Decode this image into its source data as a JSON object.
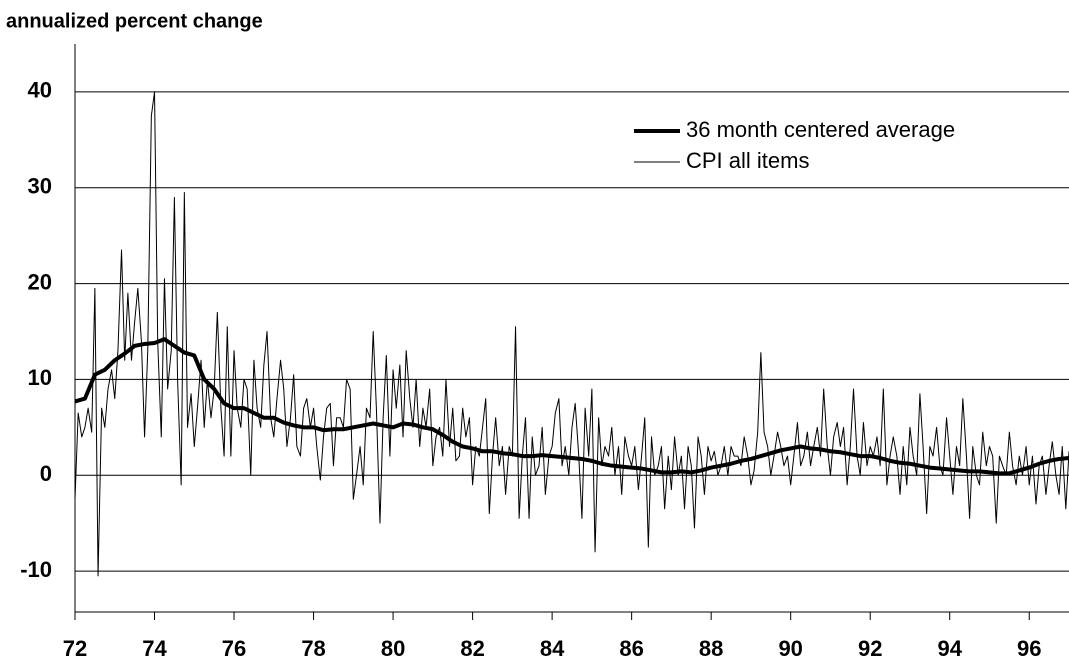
{
  "chart_data": {
    "type": "line",
    "title": "annualized percent change",
    "xlim": [
      72,
      97
    ],
    "xticks": [
      72,
      74,
      76,
      78,
      80,
      82,
      84,
      86,
      88,
      90,
      92,
      94,
      96
    ],
    "ylim": [
      -15,
      45
    ],
    "yticks": [
      40,
      30,
      20,
      10,
      0,
      -10
    ],
    "grid": true,
    "legend": "upper right",
    "series": [
      {
        "name": "36 month centered average",
        "color": "#000000",
        "x": [
          72,
          72.25,
          72.5,
          72.75,
          73,
          73.25,
          73.5,
          73.75,
          74,
          74.25,
          74.5,
          74.75,
          75,
          75.25,
          75.5,
          75.75,
          76,
          76.25,
          76.5,
          76.75,
          77,
          77.25,
          77.5,
          77.75,
          78,
          78.25,
          78.5,
          78.75,
          79,
          79.25,
          79.5,
          79.75,
          80,
          80.25,
          80.5,
          80.75,
          81,
          81.25,
          81.5,
          81.75,
          82,
          82.25,
          82.5,
          82.75,
          83,
          83.25,
          83.5,
          83.75,
          84,
          84.25,
          84.5,
          84.75,
          85,
          85.25,
          85.5,
          85.75,
          86,
          86.25,
          86.5,
          86.75,
          87,
          87.25,
          87.5,
          87.75,
          88,
          88.25,
          88.5,
          88.75,
          89,
          89.25,
          89.5,
          89.75,
          90,
          90.25,
          90.5,
          90.75,
          91,
          91.25,
          91.5,
          91.75,
          92,
          92.25,
          92.5,
          92.75,
          93,
          93.25,
          93.5,
          93.75,
          94,
          94.25,
          94.5,
          94.75,
          95,
          95.25,
          95.5,
          95.75,
          96,
          96.25,
          96.5,
          96.75,
          97
        ],
        "values": [
          7.7,
          8,
          10.5,
          11,
          12,
          12.7,
          13.5,
          13.7,
          13.8,
          14.2,
          13.5,
          12.8,
          12.5,
          10,
          9,
          7.5,
          7,
          7,
          6.5,
          6,
          6,
          5.5,
          5.2,
          5,
          5,
          4.7,
          4.8,
          4.8,
          5,
          5.2,
          5.4,
          5.2,
          5,
          5.4,
          5.3,
          5,
          4.8,
          4.2,
          3.5,
          3,
          2.8,
          2.5,
          2.5,
          2.3,
          2.2,
          2,
          2,
          2.1,
          2,
          1.9,
          1.8,
          1.7,
          1.5,
          1.2,
          1,
          0.9,
          0.8,
          0.7,
          0.5,
          0.3,
          0.3,
          0.4,
          0.3,
          0.5,
          0.8,
          1,
          1.2,
          1.5,
          1.7,
          2,
          2.3,
          2.6,
          2.8,
          3,
          2.8,
          2.7,
          2.5,
          2.4,
          2.2,
          2,
          2,
          1.8,
          1.5,
          1.3,
          1.2,
          1,
          0.8,
          0.7,
          0.6,
          0.5,
          0.4,
          0.4,
          0.3,
          0.2,
          0.2,
          0.5,
          0.8,
          1.2,
          1.5,
          1.7,
          1.8
        ]
      },
      {
        "name": "CPI all items",
        "color": "#000000",
        "x": [
          72,
          72.08,
          72.17,
          72.25,
          72.33,
          72.42,
          72.5,
          72.58,
          72.67,
          72.75,
          72.83,
          72.92,
          73,
          73.08,
          73.17,
          73.25,
          73.33,
          73.42,
          73.5,
          73.58,
          73.67,
          73.75,
          73.83,
          73.92,
          74,
          74.08,
          74.17,
          74.25,
          74.33,
          74.42,
          74.5,
          74.58,
          74.67,
          74.75,
          74.83,
          74.92,
          75,
          75.08,
          75.17,
          75.25,
          75.33,
          75.42,
          75.5,
          75.58,
          75.67,
          75.75,
          75.83,
          75.92,
          76,
          76.08,
          76.17,
          76.25,
          76.33,
          76.42,
          76.5,
          76.58,
          76.67,
          76.75,
          76.83,
          76.92,
          77,
          77.08,
          77.17,
          77.25,
          77.33,
          77.42,
          77.5,
          77.58,
          77.67,
          77.75,
          77.83,
          77.92,
          78,
          78.08,
          78.17,
          78.25,
          78.33,
          78.42,
          78.5,
          78.58,
          78.67,
          78.75,
          78.83,
          78.92,
          79,
          79.08,
          79.17,
          79.25,
          79.33,
          79.42,
          79.5,
          79.58,
          79.67,
          79.75,
          79.83,
          79.92,
          80,
          80.08,
          80.17,
          80.25,
          80.33,
          80.42,
          80.5,
          80.58,
          80.67,
          80.75,
          80.83,
          80.92,
          81,
          81.08,
          81.17,
          81.25,
          81.33,
          81.42,
          81.5,
          81.58,
          81.67,
          81.75,
          81.83,
          81.92,
          82,
          82.08,
          82.17,
          82.25,
          82.33,
          82.42,
          82.5,
          82.58,
          82.67,
          82.75,
          82.83,
          82.92,
          83,
          83.08,
          83.17,
          83.25,
          83.33,
          83.42,
          83.5,
          83.58,
          83.67,
          83.75,
          83.83,
          83.92,
          84,
          84.08,
          84.17,
          84.25,
          84.33,
          84.42,
          84.5,
          84.58,
          84.67,
          84.75,
          84.83,
          84.92,
          85,
          85.08,
          85.17,
          85.25,
          85.33,
          85.42,
          85.5,
          85.58,
          85.67,
          85.75,
          85.83,
          85.92,
          86,
          86.08,
          86.17,
          86.25,
          86.33,
          86.42,
          86.5,
          86.58,
          86.67,
          86.75,
          86.83,
          86.92,
          87,
          87.08,
          87.17,
          87.25,
          87.33,
          87.42,
          87.5,
          87.58,
          87.67,
          87.75,
          87.83,
          87.92,
          88,
          88.08,
          88.17,
          88.25,
          88.33,
          88.42,
          88.5,
          88.58,
          88.67,
          88.75,
          88.83,
          88.92,
          89,
          89.08,
          89.17,
          89.25,
          89.33,
          89.42,
          89.5,
          89.58,
          89.67,
          89.75,
          89.83,
          89.92,
          90,
          90.08,
          90.17,
          90.25,
          90.33,
          90.42,
          90.5,
          90.58,
          90.67,
          90.75,
          90.83,
          90.92,
          91,
          91.08,
          91.17,
          91.25,
          91.33,
          91.42,
          91.5,
          91.58,
          91.67,
          91.75,
          91.83,
          91.92,
          92,
          92.08,
          92.17,
          92.25,
          92.33,
          92.42,
          92.5,
          92.58,
          92.67,
          92.75,
          92.83,
          92.92,
          93,
          93.08,
          93.17,
          93.25,
          93.33,
          93.42,
          93.5,
          93.58,
          93.67,
          93.75,
          93.83,
          93.92,
          94,
          94.08,
          94.17,
          94.25,
          94.33,
          94.42,
          94.5,
          94.58,
          94.67,
          94.75,
          94.83,
          94.92,
          95,
          95.08,
          95.17,
          95.25,
          95.33,
          95.42,
          95.5,
          95.58,
          95.67,
          95.75,
          95.83,
          95.92,
          96,
          96.08,
          96.17,
          96.25,
          96.33,
          96.42,
          96.5,
          96.58,
          96.67,
          96.75,
          96.83,
          96.92,
          97
        ],
        "values": [
          -2.5,
          6.5,
          4,
          5,
          7,
          4.5,
          19.5,
          -10.5,
          7,
          5,
          9,
          11,
          8,
          13,
          23.5,
          12,
          19,
          12,
          16,
          19.5,
          14,
          4,
          13,
          37.5,
          40,
          14,
          4,
          20.5,
          9,
          13,
          29,
          10,
          -1,
          29.5,
          5,
          8.5,
          3,
          7,
          12,
          5,
          10,
          6,
          9,
          17,
          7,
          2,
          15.5,
          2,
          13,
          7,
          5,
          10,
          9,
          0,
          12,
          7,
          5,
          11.5,
          15,
          6,
          4,
          8,
          12,
          9,
          3,
          6,
          10.5,
          3,
          2,
          7,
          8,
          5,
          7,
          3,
          -0.5,
          4,
          7,
          7.5,
          1,
          6,
          6,
          5,
          10,
          9,
          -2.5,
          0,
          3,
          -1,
          7,
          6,
          15,
          7,
          -5,
          6,
          12.5,
          2,
          11,
          7,
          11.5,
          4,
          13,
          8,
          5,
          10,
          3,
          7,
          5,
          9,
          1,
          4,
          5,
          2,
          10,
          3,
          7,
          1.5,
          2,
          7,
          4,
          6,
          -1,
          3,
          2,
          5,
          8,
          -4,
          2,
          6,
          1,
          3,
          -2,
          3,
          2,
          15.5,
          -4.5,
          2,
          6,
          -4.5,
          4,
          0,
          1,
          5,
          -2,
          2,
          3,
          6.5,
          8,
          1,
          3,
          0,
          5,
          7.5,
          2,
          -4.5,
          7,
          2,
          9,
          -8,
          6,
          1,
          3,
          2,
          5,
          0,
          3,
          -2,
          4,
          2,
          1,
          3,
          -1.5,
          2,
          6,
          -7.5,
          4,
          0,
          1,
          3,
          -3.5,
          2,
          -1.5,
          4,
          0,
          2,
          -3.5,
          3,
          1,
          -5.5,
          4,
          2,
          -2,
          3,
          1.5,
          2.5,
          0,
          1,
          3,
          0,
          3,
          2,
          2,
          1,
          4,
          2,
          -1,
          0.5,
          4.5,
          12.8,
          4.5,
          3,
          0,
          2,
          4.5,
          3,
          1,
          2,
          -1,
          2,
          5.5,
          1,
          2,
          4.5,
          1,
          3,
          5,
          2,
          9,
          3,
          0,
          4,
          5.5,
          3,
          5,
          -1,
          3,
          9,
          2,
          0,
          5.5,
          1,
          3,
          2,
          4,
          1,
          9,
          -1,
          2,
          4,
          2,
          -2,
          3,
          -1,
          5,
          2,
          0,
          8.5,
          3,
          -4,
          3,
          2,
          5,
          1,
          0,
          6,
          2,
          -2,
          3,
          1,
          8,
          2,
          -4.5,
          3,
          0,
          -1,
          4.5,
          1,
          3,
          2,
          -5,
          2,
          1,
          0,
          4.5,
          1,
          -1,
          2,
          0,
          3,
          -1,
          2,
          -3,
          1,
          2,
          -2,
          1,
          3.5,
          0,
          -2,
          3,
          -3.5,
          2.5
        ]
      }
    ]
  }
}
